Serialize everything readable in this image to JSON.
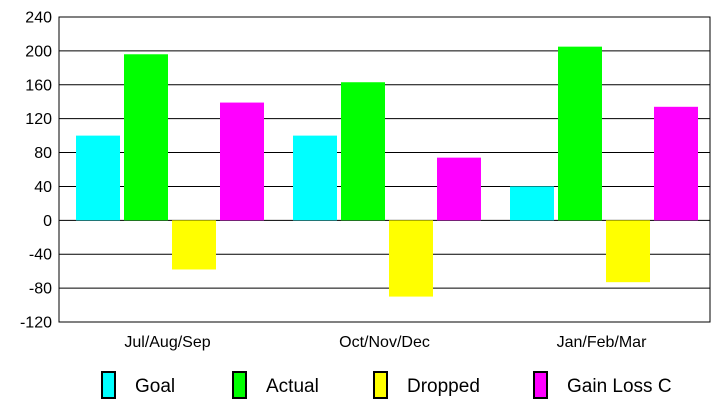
{
  "chart_data": {
    "type": "bar",
    "categories": [
      "Jul/Aug/Sep",
      "Oct/Nov/Dec",
      "Jan/Feb/Mar"
    ],
    "series": [
      {
        "name": "Goal",
        "color": "#00ffff",
        "values": [
          100,
          100,
          40
        ]
      },
      {
        "name": "Actual",
        "color": "#00ff00",
        "values": [
          196,
          163,
          205
        ]
      },
      {
        "name": "Dropped",
        "color": "#ffff00",
        "values": [
          -58,
          -90,
          -73
        ]
      },
      {
        "name": "Gain Loss C",
        "color": "#ff00ff",
        "values": [
          139,
          74,
          134
        ]
      }
    ],
    "ylim": [
      -120,
      240
    ],
    "yticks": [
      -120,
      -80,
      -40,
      0,
      40,
      80,
      120,
      160,
      200,
      240
    ],
    "grid": true,
    "legend": "bottom"
  }
}
